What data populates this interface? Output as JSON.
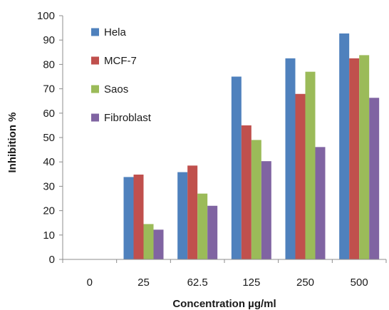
{
  "chart_data": {
    "type": "bar",
    "title": "",
    "xlabel": "Concentration µg/ml",
    "ylabel": "Inhibition  %",
    "ylim": [
      0,
      100
    ],
    "yticks": [
      "0",
      "10",
      "20",
      "30",
      "40",
      "50",
      "60",
      "70",
      "80",
      "90",
      "100"
    ],
    "categories": [
      "0",
      "25",
      "62.5",
      "125",
      "250",
      "500"
    ],
    "grid": false,
    "legend_position": "top-left",
    "series": [
      {
        "name": "Hela",
        "color": "#4f81bd",
        "values": [
          0,
          33.8,
          35.8,
          75.0,
          82.5,
          92.7
        ]
      },
      {
        "name": "MCF-7",
        "color": "#c0504d",
        "values": [
          0,
          34.8,
          38.5,
          55.0,
          67.9,
          82.5
        ]
      },
      {
        "name": "Saos",
        "color": "#9bbb59",
        "values": [
          0,
          14.5,
          27.0,
          49.0,
          77.0,
          83.8
        ]
      },
      {
        "name": "Fibroblast",
        "color": "#8064a2",
        "values": [
          0,
          12.2,
          22.0,
          40.3,
          46.1,
          66.3
        ]
      }
    ]
  }
}
